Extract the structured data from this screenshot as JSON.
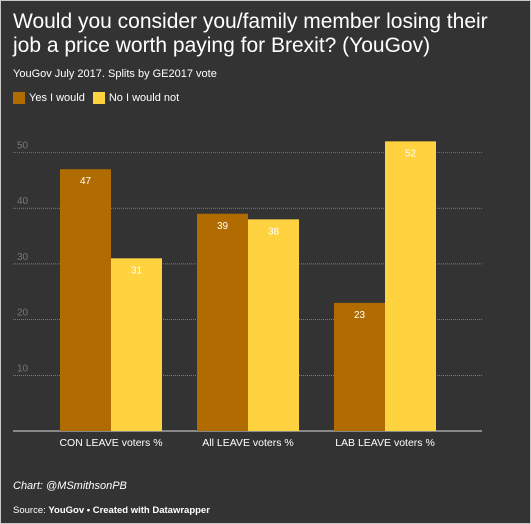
{
  "title": "Would you consider you/family member losing their job a price worth paying for Brexit? (YouGov)",
  "subtitle": "YouGov July 2017. Splits by GE2017 vote",
  "notes": "Chart: @MSmithsonPB",
  "source": {
    "label": "Source:",
    "name": "YouGov",
    "separator": "•",
    "credit": "Created with Datawrapper"
  },
  "colors": {
    "background": "#333333",
    "series_yes": "#b06c00",
    "series_no": "#ffd23f",
    "gridline": "#aaaaaa",
    "tick_label": "#777777"
  },
  "chart_data": {
    "type": "bar",
    "categories": [
      "CON LEAVE voters %",
      "All LEAVE voters %",
      "LAB LEAVE voters %"
    ],
    "series": [
      {
        "name": "Yes I would",
        "color": "#b06c00",
        "values": [
          47,
          39,
          23
        ]
      },
      {
        "name": "No I would not",
        "color": "#ffd23f",
        "values": [
          31,
          38,
          52
        ]
      }
    ],
    "y_ticks": [
      10,
      20,
      30,
      40,
      50
    ],
    "ylim": [
      0,
      52
    ],
    "grid": true,
    "legend": "top-left",
    "xlabel": "",
    "ylabel": ""
  }
}
